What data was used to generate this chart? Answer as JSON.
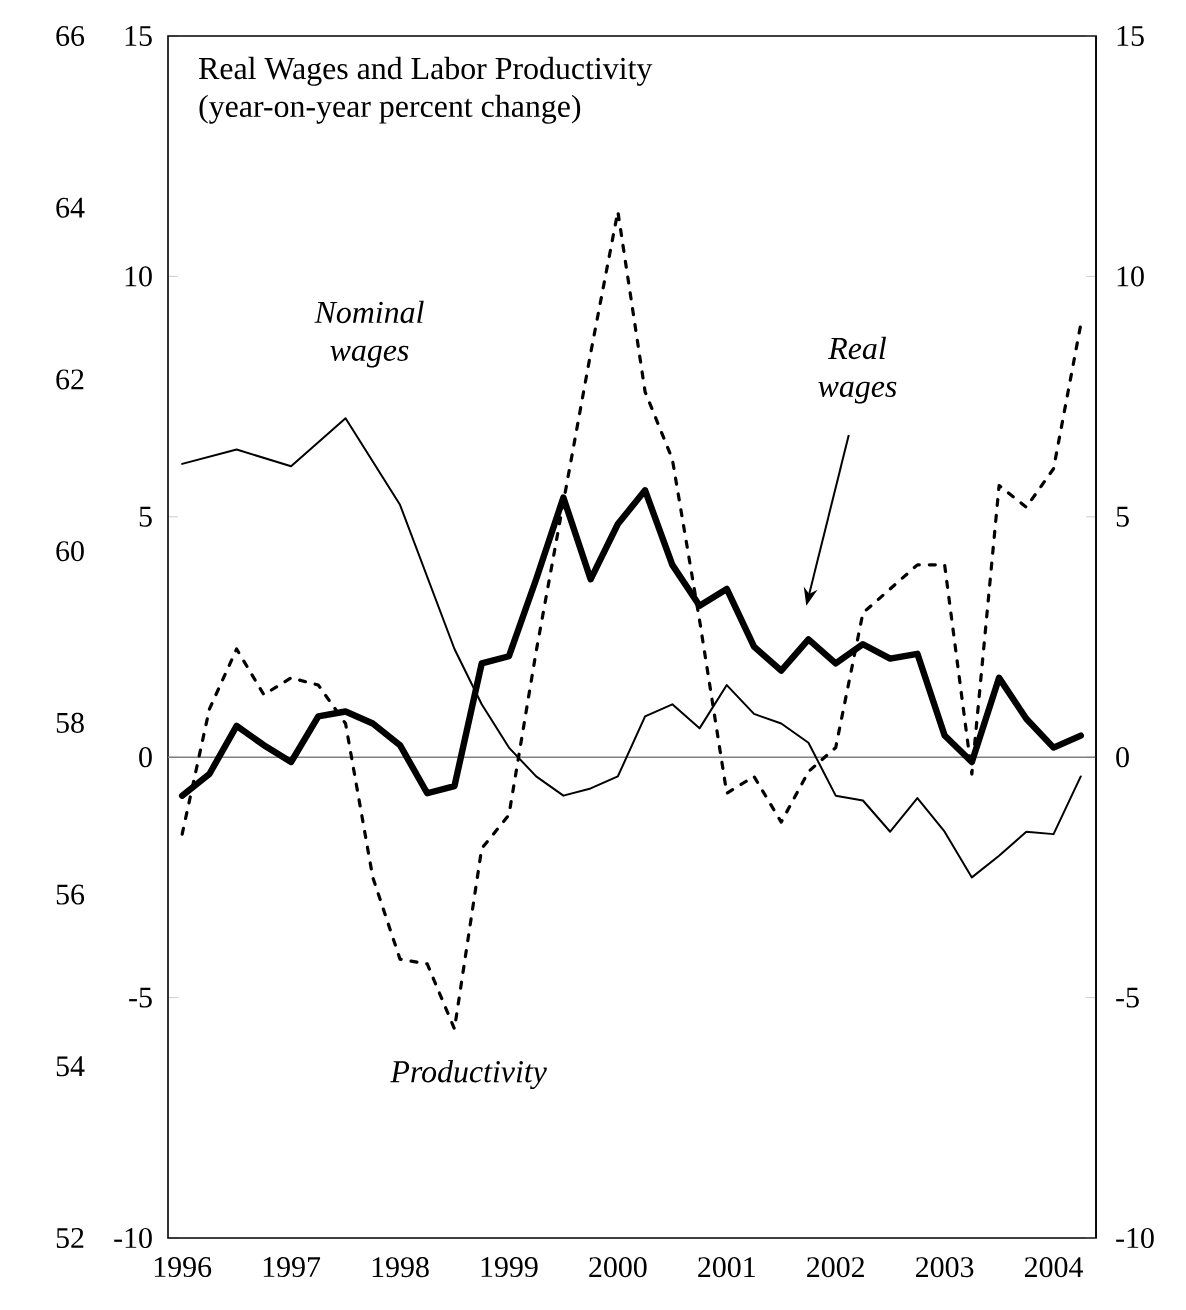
{
  "chart_data": {
    "type": "line",
    "title": "Real Wages and Labor Productivity",
    "subtitle": "(year-on-year percent change)",
    "x": [
      1996,
      1996.25,
      1996.5,
      1996.75,
      1997,
      1997.25,
      1997.5,
      1997.75,
      1998,
      1998.25,
      1998.5,
      1998.75,
      1999,
      1999.25,
      1999.5,
      1999.75,
      2000,
      2000.25,
      2000.5,
      2000.75,
      2001,
      2001.25,
      2001.5,
      2001.75,
      2002,
      2002.25,
      2002.5,
      2002.75,
      2003,
      2003.25,
      2003.5,
      2003.75,
      2004,
      2004.25
    ],
    "series": [
      {
        "name": "Nominal wages",
        "color": "#000000",
        "line_style": "solid",
        "x": [
          1996,
          1996.5,
          1997,
          1997.5,
          1998,
          1998.5,
          1998.75,
          1999,
          1999.25,
          1999.5,
          1999.75,
          2000,
          2000.25,
          2000.5,
          2000.75,
          2001,
          2001.25,
          2001.5,
          2001.75,
          2002,
          2002.25,
          2002.5,
          2002.75,
          2003,
          2003.25,
          2003.5,
          2003.75,
          2004,
          2004.25
        ],
        "values": [
          6.1,
          6.4,
          6.05,
          7.05,
          5.25,
          2.25,
          1.1,
          0.2,
          -0.4,
          -0.8,
          -0.65,
          -0.4,
          0.85,
          1.1,
          0.6,
          1.5,
          0.9,
          0.7,
          0.3,
          -0.8,
          -0.9,
          -1.55,
          -0.85,
          -1.55,
          -2.5,
          -2.05,
          -1.55,
          -1.6,
          -0.4
        ]
      },
      {
        "name": "Real wages",
        "color": "#000000",
        "line_style": "solid",
        "values": [
          -0.8,
          -0.35,
          0.65,
          0.25,
          -0.1,
          0.85,
          0.95,
          0.7,
          0.25,
          -0.75,
          -0.6,
          1.95,
          2.1,
          3.7,
          5.4,
          3.7,
          4.85,
          5.55,
          4.0,
          3.15,
          3.5,
          2.3,
          1.8,
          2.45,
          1.95,
          2.35,
          2.05,
          2.15,
          0.45,
          -0.1,
          1.65,
          0.8,
          0.2,
          0.45
        ]
      },
      {
        "name": "Productivity",
        "color": "#000000",
        "line_style": "dotted",
        "values": [
          -1.6,
          1.0,
          2.25,
          1.3,
          1.65,
          1.5,
          0.7,
          -2.5,
          -4.2,
          -4.3,
          -5.65,
          -1.9,
          -1.2,
          2.2,
          5.3,
          8.4,
          11.35,
          7.6,
          6.2,
          2.85,
          -0.75,
          -0.4,
          -1.35,
          -0.3,
          0.2,
          3.0,
          3.5,
          4.0,
          4.0,
          -0.35,
          5.65,
          5.2,
          6.0,
          9.0
        ]
      }
    ],
    "xlim": [
      1995.87,
      2004.39
    ],
    "xticks": [
      1996,
      1997,
      1998,
      1999,
      2000,
      2001,
      2002,
      2003,
      2004
    ],
    "ylim": [
      -10,
      15
    ],
    "yticks": [
      -10,
      -5,
      0,
      5,
      10,
      15
    ],
    "y2lim": [
      -10,
      15
    ],
    "y2ticks": [
      -10,
      -5,
      0,
      5,
      10,
      15
    ],
    "y3lim": [
      52,
      66
    ],
    "y3ticks": [
      52,
      54,
      56,
      58,
      60,
      62,
      64,
      66
    ],
    "ref_lines": [
      {
        "axis": "y",
        "value": 0,
        "color": "#808080"
      }
    ],
    "grid": false,
    "marker": "none"
  }
}
